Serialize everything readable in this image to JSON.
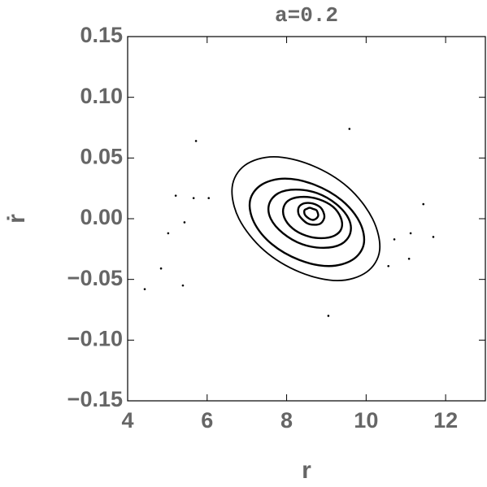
{
  "chart_data": {
    "type": "scatter",
    "title": "a=0.2",
    "x_label": "r",
    "y_label": "ṙ",
    "xlim": [
      4,
      13
    ],
    "ylim": [
      -0.15,
      0.15
    ],
    "xticks": [
      4,
      6,
      8,
      10,
      12
    ],
    "yticks": [
      0.15,
      {
        "value": 0.1,
        "label": "0.10"
      },
      0.05,
      {
        "value": 0,
        "label": "0.00"
      },
      {
        "value": -0.05,
        "label": "−0.05"
      },
      {
        "value": -0.1,
        "label": "−0.10"
      },
      {
        "value": -0.15,
        "label": "−0.15"
      }
    ],
    "color": "#000000",
    "points": {
      "x": [
        5.72,
        9.58,
        5.21,
        5.66,
        6.04,
        5.43,
        11.44,
        5.02,
        11.12,
        10.71,
        11.69,
        4.84,
        4.43,
        5.39,
        11.08,
        10.56,
        9.05
      ],
      "y": [
        0.064,
        0.074,
        0.019,
        0.017,
        0.017,
        -0.003,
        0.012,
        -0.012,
        -0.012,
        -0.017,
        -0.015,
        -0.041,
        -0.058,
        -0.055,
        -0.033,
        -0.039,
        -0.08
      ]
    },
    "curves": [
      {
        "x": [
          10.16,
          9.54,
          8.63,
          7.68,
          6.95,
          6.63,
          6.8,
          7.43,
          8.33,
          9.28,
          10.01,
          10.34
        ],
        "y": [
          0,
          0.026,
          0.044,
          0.051,
          0.044,
          0.026,
          0,
          -0.026,
          -0.044,
          -0.051,
          -0.044,
          -0.026
        ]
      },
      {
        "x": [
          9.84,
          9.39,
          8.7,
          7.96,
          7.37,
          7.08,
          7.18,
          7.63,
          8.32,
          9.06,
          9.65,
          9.94
        ],
        "y": [
          -0.003,
          0.015,
          0.028,
          0.033,
          0.028,
          0.015,
          -0.003,
          -0.021,
          -0.034,
          -0.039,
          -0.034,
          -0.021
        ]
      },
      {
        "x": [
          9.56,
          9.25,
          8.77,
          8.23,
          7.79,
          7.56,
          7.6,
          7.91,
          8.39,
          8.93,
          9.37,
          9.6
        ],
        "y": [
          0,
          0.012,
          0.021,
          0.024,
          0.021,
          0.012,
          0,
          -0.012,
          -0.021,
          -0.024,
          -0.021,
          -0.012
        ]
      },
      {
        "x": [
          9.36,
          9.16,
          8.81,
          8.43,
          8.1,
          7.93,
          7.94,
          8.15,
          8.49,
          8.87,
          9.2,
          9.38
        ],
        "y": [
          0.001,
          0.01,
          0.016,
          0.018,
          0.016,
          0.01,
          0.001,
          -0.008,
          -0.014,
          -0.016,
          -0.014,
          -0.008
        ]
      },
      {
        "x": [
          8.94,
          8.86,
          8.71,
          8.54,
          8.39,
          8.3,
          8.3,
          8.38,
          8.53,
          8.7,
          8.85,
          8.94
        ],
        "y": [
          0.004,
          0.009,
          0.012,
          0.013,
          0.012,
          0.009,
          0.004,
          0,
          -0.004,
          -0.005,
          -0.004,
          0
        ]
      },
      {
        "x": [
          8.79,
          8.75,
          8.67,
          8.58,
          8.5,
          8.45,
          8.45,
          8.49,
          8.57,
          8.66,
          8.74,
          8.79
        ],
        "y": [
          0.004,
          0.007,
          0.008,
          0.009,
          0.008,
          0.007,
          0.004,
          0.002,
          0,
          -0.001,
          0,
          0.002
        ]
      }
    ]
  }
}
